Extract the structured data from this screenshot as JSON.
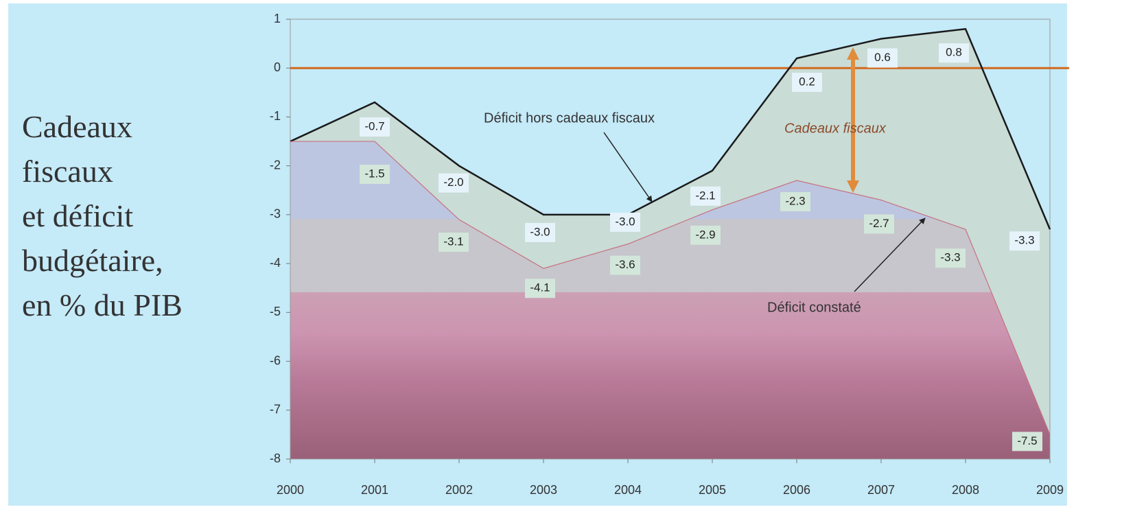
{
  "chart_data": {
    "type": "area",
    "title": [
      "Cadeaux",
      "fiscaux",
      "et déficit",
      "budgétaire,",
      "en % du PIB"
    ],
    "x": [
      2000,
      2001,
      2002,
      2003,
      2004,
      2005,
      2006,
      2007,
      2008,
      2009
    ],
    "xlim": [
      2000,
      2009
    ],
    "xticks": [
      2000,
      2001,
      2002,
      2003,
      2004,
      2005,
      2006,
      2007,
      2008,
      2009
    ],
    "ylim": [
      -8,
      1
    ],
    "yticks": [
      -8,
      -7,
      -6,
      -5,
      -4,
      -3,
      -2,
      -1,
      0,
      1
    ],
    "series": [
      {
        "name": "Déficit hors cadeaux fiscaux",
        "color": "#1a1a1a",
        "values": [
          -1.5,
          -0.7,
          -2.0,
          -3.0,
          -3.0,
          -2.1,
          0.2,
          0.6,
          0.8,
          -3.3
        ],
        "value_labels": [
          null,
          "-0.7",
          "-2.0",
          "-3.0",
          "-3.0",
          "-2.1",
          "0.2",
          "0.6",
          "0.8",
          "-3.3"
        ]
      },
      {
        "name": "Déficit constaté",
        "color": "#c87080",
        "values": [
          -1.5,
          -1.5,
          -3.1,
          -4.1,
          -3.6,
          -2.9,
          -2.3,
          -2.7,
          -3.3,
          -7.5
        ],
        "value_labels": [
          null,
          "-1.5",
          "-3.1",
          "-4.1",
          "-3.6",
          "-2.9",
          "-2.3",
          "-2.7",
          "-3.3",
          "-7.5"
        ]
      }
    ],
    "annotations": [
      "Cadeaux fiscaux"
    ]
  }
}
